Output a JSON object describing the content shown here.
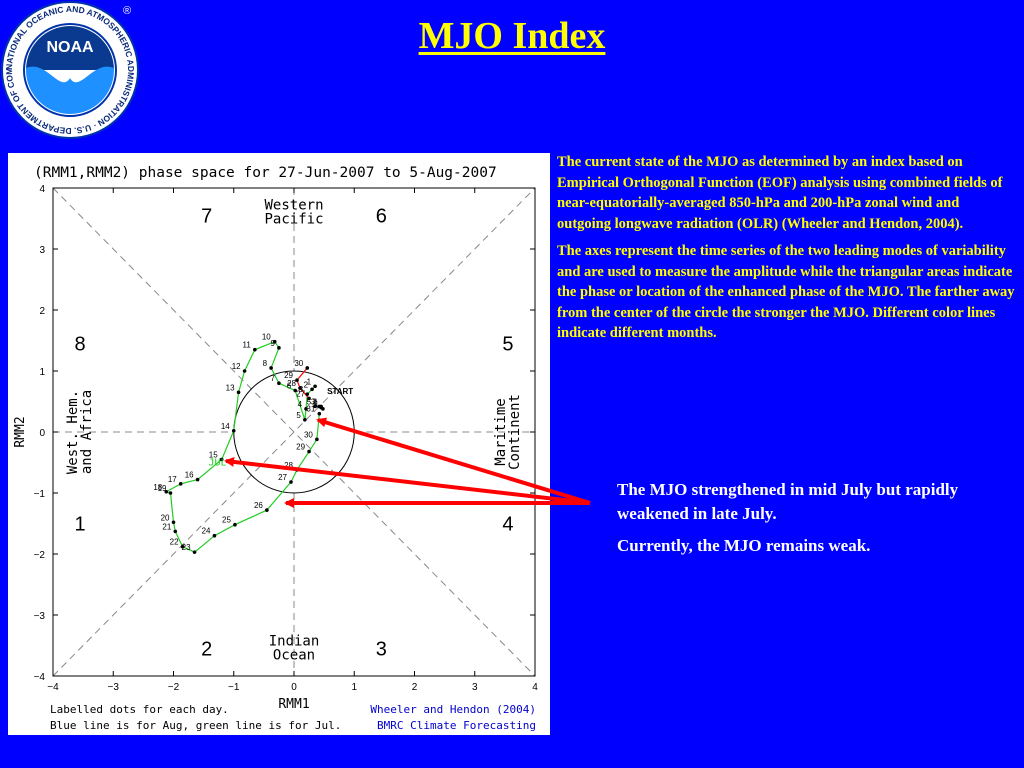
{
  "title": "MJO Index",
  "logo": {
    "text": "NOAA",
    "ring_text": "NATIONAL OCEANIC AND ATMOSPHERIC ADMINISTRATION · U.S. DEPARTMENT OF COMMERCE",
    "registered": "®"
  },
  "description": [
    "The current state of the MJO as determined by an index based on Empirical Orthogonal Function (EOF) analysis using combined fields of near-equatorially-averaged 850-hPa and 200-hPa zonal wind and outgoing longwave radiation (OLR) (Wheeler and Hendon, 2004).",
    "The axes represent the time series of the two leading modes of variability and are used to measure the amplitude while the triangular areas indicate the phase or location of the enhanced phase of the MJO. The farther away from the center of the circle the stronger the MJO. Different color lines indicate different months."
  ],
  "notes": [
    "The MJO strengthened in mid July but rapidly weakened in late July.",
    "Currently, the MJO remains weak."
  ],
  "colors": {
    "background": "#0000ff",
    "title": "#ffff00",
    "arrow": "#ff0000",
    "july_line": "#22cc22",
    "august_line": "#0000ff",
    "june_line": "#ff0000"
  },
  "chart_data": {
    "type": "scatter",
    "title": "(RMM1,RMM2) phase space for 27-Jun-2007 to  5-Aug-2007",
    "xlabel": "RMM1",
    "ylabel": "RMM2",
    "xlim": [
      -4,
      4
    ],
    "ylim": [
      -4,
      4
    ],
    "xticks": [
      -4,
      -3,
      -2,
      -1,
      0,
      1,
      2,
      3,
      4
    ],
    "yticks": [
      -4,
      -3,
      -2,
      -1,
      0,
      1,
      2,
      3,
      4
    ],
    "phase_numbers": [
      {
        "label": "1",
        "x": -3.55,
        "y": -1.5
      },
      {
        "label": "2",
        "x": -1.45,
        "y": -3.55
      },
      {
        "label": "3",
        "x": 1.45,
        "y": -3.55
      },
      {
        "label": "4",
        "x": 3.55,
        "y": -1.5
      },
      {
        "label": "5",
        "x": 3.55,
        "y": 1.45
      },
      {
        "label": "6",
        "x": 1.45,
        "y": 3.55
      },
      {
        "label": "7",
        "x": -1.45,
        "y": 3.55
      },
      {
        "label": "8",
        "x": -3.55,
        "y": 1.45
      }
    ],
    "region_labels": [
      {
        "lines": [
          "Western",
          "Pacific"
        ],
        "x": 0,
        "y": 3.6,
        "rotate": false
      },
      {
        "lines": [
          "Indian",
          "Ocean"
        ],
        "x": 0,
        "y": -3.55,
        "rotate": false
      },
      {
        "lines": [
          "West. Hem.",
          "and Africa"
        ],
        "x": -3.55,
        "y": 0,
        "rotate": true
      },
      {
        "lines": [
          "Maritime",
          "Continent"
        ],
        "x": 3.55,
        "y": 0,
        "rotate": true
      }
    ],
    "start_label": {
      "text": "START",
      "x": 0.55,
      "y": 0.62
    },
    "month_label": {
      "text": "JUL",
      "x": -1.42,
      "y": -0.55
    },
    "series": [
      {
        "name": "Jun",
        "color": "#ff0000",
        "points": [
          {
            "label": "27",
            "x": 0.25,
            "y": 0.55
          },
          {
            "label": "28",
            "x": 0.1,
            "y": 0.72
          },
          {
            "label": "29",
            "x": 0.05,
            "y": 0.85
          },
          {
            "label": "30",
            "x": 0.22,
            "y": 1.05
          }
        ]
      },
      {
        "name": "Jul",
        "color": "#22cc22",
        "points": [
          {
            "label": "1",
            "x": 0.35,
            "y": 0.75
          },
          {
            "label": "2",
            "x": 0.3,
            "y": 0.7
          },
          {
            "label": "3",
            "x": 0.22,
            "y": 0.62
          },
          {
            "label": "4",
            "x": 0.2,
            "y": 0.38
          },
          {
            "label": "5",
            "x": 0.18,
            "y": 0.2
          },
          {
            "label": "6",
            "x": 0.02,
            "y": 0.68
          },
          {
            "label": "7",
            "x": -0.25,
            "y": 0.8
          },
          {
            "label": "8",
            "x": -0.38,
            "y": 1.05
          },
          {
            "label": "9",
            "x": -0.25,
            "y": 1.38
          },
          {
            "label": "10",
            "x": -0.32,
            "y": 1.48
          },
          {
            "label": "11",
            "x": -0.65,
            "y": 1.35
          },
          {
            "label": "12",
            "x": -0.82,
            "y": 1.0
          },
          {
            "label": "13",
            "x": -0.92,
            "y": 0.65
          },
          {
            "label": "14",
            "x": -1.0,
            "y": 0.02
          },
          {
            "label": "15",
            "x": -1.2,
            "y": -0.45
          },
          {
            "label": "16",
            "x": -1.6,
            "y": -0.78
          },
          {
            "label": "17",
            "x": -1.88,
            "y": -0.85
          },
          {
            "label": "18",
            "x": -2.12,
            "y": -0.98
          },
          {
            "label": "19",
            "x": -2.05,
            "y": -1.0
          },
          {
            "label": "20",
            "x": -2.0,
            "y": -1.48
          },
          {
            "label": "21",
            "x": -1.97,
            "y": -1.63
          },
          {
            "label": "22",
            "x": -1.85,
            "y": -1.88
          },
          {
            "label": "23",
            "x": -1.65,
            "y": -1.97
          },
          {
            "label": "24",
            "x": -1.32,
            "y": -1.7
          },
          {
            "label": "25",
            "x": -0.98,
            "y": -1.52
          },
          {
            "label": "26",
            "x": -0.45,
            "y": -1.28
          },
          {
            "label": "27",
            "x": -0.05,
            "y": -0.82
          },
          {
            "label": "28",
            "x": 0.05,
            "y": -0.62
          },
          {
            "label": "29",
            "x": 0.25,
            "y": -0.32
          },
          {
            "label": "30",
            "x": 0.38,
            "y": -0.12
          },
          {
            "label": "31",
            "x": 0.42,
            "y": 0.3
          }
        ]
      },
      {
        "name": "Aug",
        "color": "#0000ff",
        "points": [
          {
            "label": "1",
            "x": 0.48,
            "y": 0.38
          },
          {
            "label": "2",
            "x": 0.45,
            "y": 0.42
          },
          {
            "label": "3",
            "x": 0.42,
            "y": 0.42
          },
          {
            "label": "4",
            "x": 0.45,
            "y": 0.4
          },
          {
            "label": "5",
            "x": 0.35,
            "y": 0.42
          }
        ]
      }
    ],
    "footer_left": [
      "Labelled dots for each day.",
      "Blue line is for Aug, green line is for Jul."
    ],
    "footer_right": [
      "Wheeler and Hendon (2004)",
      "BMRC Climate Forecasting"
    ]
  }
}
